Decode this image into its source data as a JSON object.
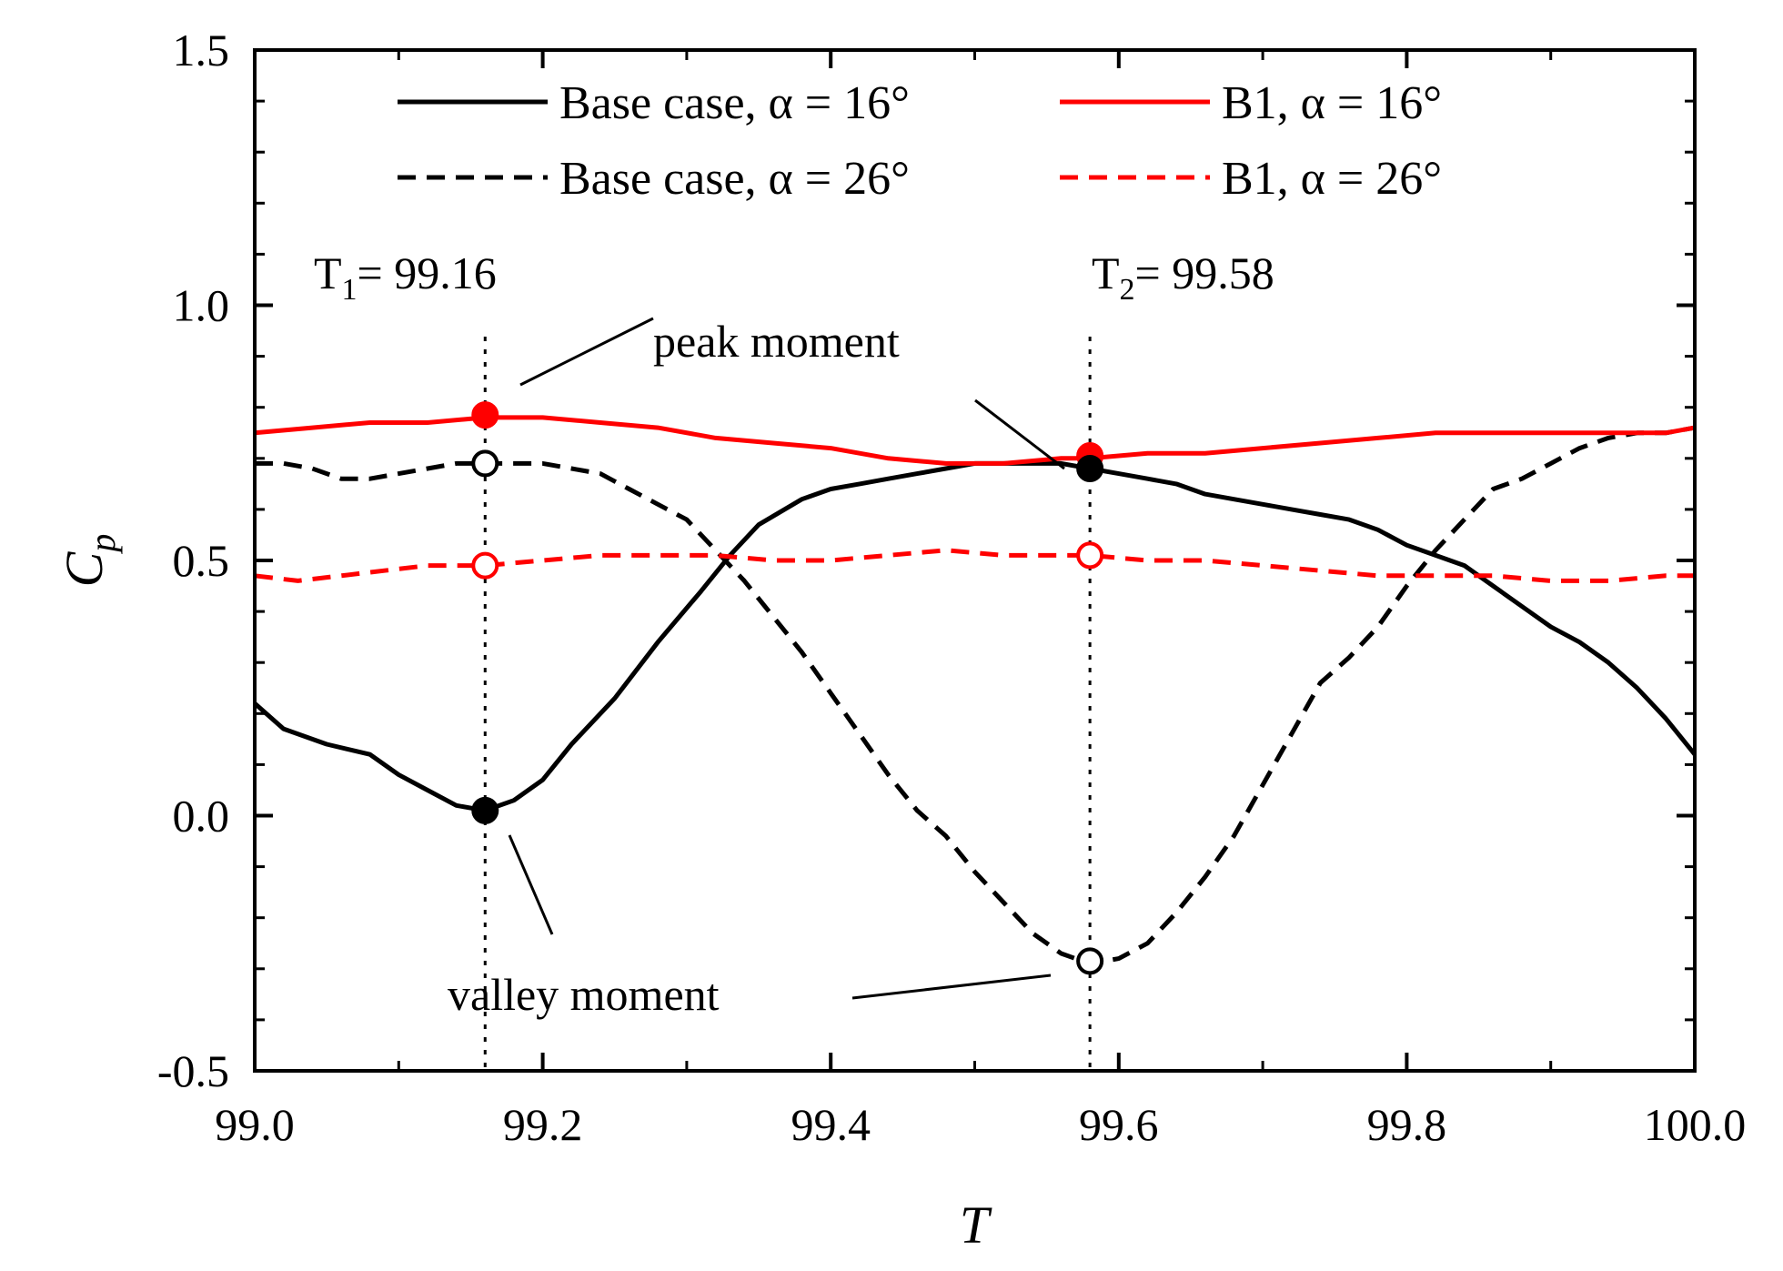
{
  "chart_data": {
    "type": "line",
    "title": "",
    "xlabel": "T",
    "ylabel": {
      "main": "C",
      "sub": "p"
    },
    "xlim": [
      99.0,
      100.0
    ],
    "ylim": [
      -0.5,
      1.5
    ],
    "xticks": [
      99.0,
      99.2,
      99.4,
      99.6,
      99.8,
      100.0
    ],
    "xtick_labels": [
      "99.0",
      "99.2",
      "99.4",
      "99.6",
      "99.8",
      "100.0"
    ],
    "yticks": [
      -0.5,
      0.0,
      0.5,
      1.0,
      1.5
    ],
    "ytick_labels": [
      "-0.5",
      "0.0",
      "0.5",
      "1.0",
      "1.5"
    ],
    "grid": false,
    "legend_position": "top",
    "series": [
      {
        "name": "Base case, α = 16°",
        "color": "#000000",
        "dash": "solid",
        "x": [
          99.0,
          99.02,
          99.05,
          99.08,
          99.1,
          99.12,
          99.14,
          99.16,
          99.18,
          99.2,
          99.22,
          99.25,
          99.28,
          99.31,
          99.33,
          99.35,
          99.38,
          99.4,
          99.42,
          99.44,
          99.46,
          99.48,
          99.5,
          99.52,
          99.54,
          99.56,
          99.58,
          99.6,
          99.62,
          99.64,
          99.66,
          99.68,
          99.7,
          99.72,
          99.74,
          99.76,
          99.78,
          99.8,
          99.82,
          99.84,
          99.86,
          99.88,
          99.9,
          99.92,
          99.94,
          99.96,
          99.98,
          100.0
        ],
        "y": [
          0.22,
          0.17,
          0.14,
          0.12,
          0.08,
          0.05,
          0.02,
          0.01,
          0.03,
          0.07,
          0.14,
          0.23,
          0.34,
          0.44,
          0.51,
          0.57,
          0.62,
          0.64,
          0.65,
          0.66,
          0.67,
          0.68,
          0.69,
          0.69,
          0.69,
          0.69,
          0.68,
          0.67,
          0.66,
          0.65,
          0.63,
          0.62,
          0.61,
          0.6,
          0.59,
          0.58,
          0.56,
          0.53,
          0.51,
          0.49,
          0.45,
          0.41,
          0.37,
          0.34,
          0.3,
          0.25,
          0.19,
          0.12
        ]
      },
      {
        "name": "Base case, α = 26°",
        "color": "#000000",
        "dash": "dashed",
        "x": [
          99.0,
          99.02,
          99.04,
          99.06,
          99.08,
          99.1,
          99.12,
          99.14,
          99.16,
          99.18,
          99.2,
          99.22,
          99.24,
          99.26,
          99.28,
          99.3,
          99.32,
          99.34,
          99.36,
          99.38,
          99.4,
          99.42,
          99.44,
          99.46,
          99.48,
          99.5,
          99.52,
          99.54,
          99.56,
          99.58,
          99.6,
          99.62,
          99.64,
          99.66,
          99.68,
          99.7,
          99.72,
          99.74,
          99.76,
          99.78,
          99.8,
          99.82,
          99.84,
          99.86,
          99.88,
          99.9,
          99.92,
          99.94,
          99.96,
          99.98,
          100.0
        ],
        "y": [
          0.69,
          0.69,
          0.68,
          0.66,
          0.66,
          0.67,
          0.68,
          0.69,
          0.69,
          0.69,
          0.69,
          0.68,
          0.67,
          0.64,
          0.61,
          0.58,
          0.52,
          0.46,
          0.39,
          0.32,
          0.24,
          0.16,
          0.08,
          0.01,
          -0.04,
          -0.11,
          -0.17,
          -0.23,
          -0.27,
          -0.29,
          -0.28,
          -0.25,
          -0.19,
          -0.12,
          -0.04,
          0.06,
          0.16,
          0.26,
          0.31,
          0.37,
          0.45,
          0.52,
          0.58,
          0.64,
          0.66,
          0.69,
          0.72,
          0.74,
          0.75,
          0.75,
          0.76
        ]
      },
      {
        "name": "B1, α = 16°",
        "color": "#ff0000",
        "dash": "solid",
        "x": [
          99.0,
          99.04,
          99.08,
          99.12,
          99.16,
          99.2,
          99.24,
          99.28,
          99.32,
          99.36,
          99.4,
          99.44,
          99.48,
          99.52,
          99.56,
          99.58,
          99.62,
          99.66,
          99.7,
          99.74,
          99.78,
          99.82,
          99.86,
          99.9,
          99.94,
          99.98,
          100.0
        ],
        "y": [
          0.75,
          0.76,
          0.77,
          0.77,
          0.78,
          0.78,
          0.77,
          0.76,
          0.74,
          0.73,
          0.72,
          0.7,
          0.69,
          0.69,
          0.7,
          0.7,
          0.71,
          0.71,
          0.72,
          0.73,
          0.74,
          0.75,
          0.75,
          0.75,
          0.75,
          0.75,
          0.76
        ]
      },
      {
        "name": "B1, α = 26°",
        "color": "#ff0000",
        "dash": "dashed",
        "x": [
          99.0,
          99.03,
          99.06,
          99.09,
          99.12,
          99.16,
          99.2,
          99.24,
          99.28,
          99.32,
          99.36,
          99.4,
          99.44,
          99.48,
          99.52,
          99.56,
          99.58,
          99.62,
          99.66,
          99.7,
          99.74,
          99.78,
          99.82,
          99.86,
          99.9,
          99.94,
          99.98,
          100.0
        ],
        "y": [
          0.47,
          0.46,
          0.47,
          0.48,
          0.49,
          0.49,
          0.5,
          0.51,
          0.51,
          0.51,
          0.5,
          0.5,
          0.51,
          0.52,
          0.51,
          0.51,
          0.51,
          0.5,
          0.5,
          0.49,
          0.48,
          0.47,
          0.47,
          0.47,
          0.46,
          0.46,
          0.47,
          0.47
        ]
      }
    ],
    "markers": [
      {
        "series": "B1, α = 16°",
        "x": 99.16,
        "y": 0.785,
        "style": "filled",
        "color": "#ff0000"
      },
      {
        "series": "Base case, α = 26°",
        "x": 99.16,
        "y": 0.69,
        "style": "open",
        "color": "#000000"
      },
      {
        "series": "B1, α = 26°",
        "x": 99.16,
        "y": 0.49,
        "style": "open",
        "color": "#ff0000"
      },
      {
        "series": "Base case, α = 16°",
        "x": 99.16,
        "y": 0.01,
        "style": "filled",
        "color": "#000000"
      },
      {
        "series": "B1, α = 16°",
        "x": 99.58,
        "y": 0.705,
        "style": "filled",
        "color": "#ff0000"
      },
      {
        "series": "Base case, α = 16°",
        "x": 99.58,
        "y": 0.68,
        "style": "filled",
        "color": "#000000"
      },
      {
        "series": "B1, α = 26°",
        "x": 99.58,
        "y": 0.51,
        "style": "open",
        "color": "#ff0000"
      },
      {
        "series": "Base case, α = 26°",
        "x": 99.58,
        "y": -0.285,
        "style": "open",
        "color": "#000000"
      }
    ],
    "reference_lines": [
      {
        "x": 99.16,
        "label_main": "T",
        "label_sub": "1",
        "label_rest": "= 99.16"
      },
      {
        "x": 99.58,
        "label_main": "T",
        "label_sub": "2",
        "label_rest": "= 99.58"
      }
    ],
    "annotations": [
      {
        "text": "peak moment"
      },
      {
        "text": "valley moment"
      }
    ]
  }
}
